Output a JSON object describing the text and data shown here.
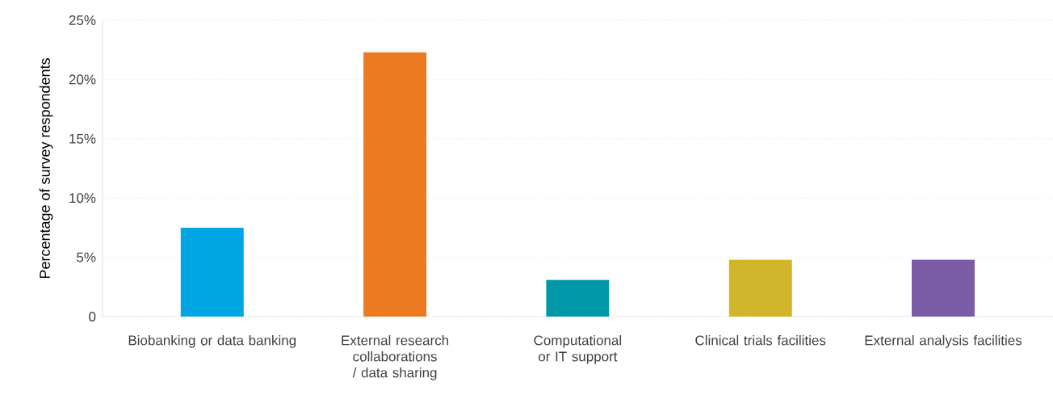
{
  "chart_data": {
    "type": "bar",
    "ylabel": "Percentage of survey respondents",
    "categories": [
      "Biobanking or data banking",
      "External research collaborations / data sharing",
      "Computational or IT support",
      "Clinical trials facilities",
      "External analysis facilities"
    ],
    "values": [
      7.5,
      22.3,
      3.1,
      4.8,
      4.8
    ],
    "colors": [
      "#00a5e3",
      "#ec7a23",
      "#0097a7",
      "#d1b62c",
      "#7b5ba6"
    ],
    "ylim": [
      0,
      25
    ],
    "yticks": [
      0,
      {
        "value": 5,
        "label": "5%"
      },
      {
        "value": 10,
        "label": "10%"
      },
      {
        "value": 15,
        "label": "15%"
      },
      {
        "value": 20,
        "label": "20%"
      },
      {
        "value": 25,
        "label": "25%"
      }
    ],
    "grid": "y"
  }
}
